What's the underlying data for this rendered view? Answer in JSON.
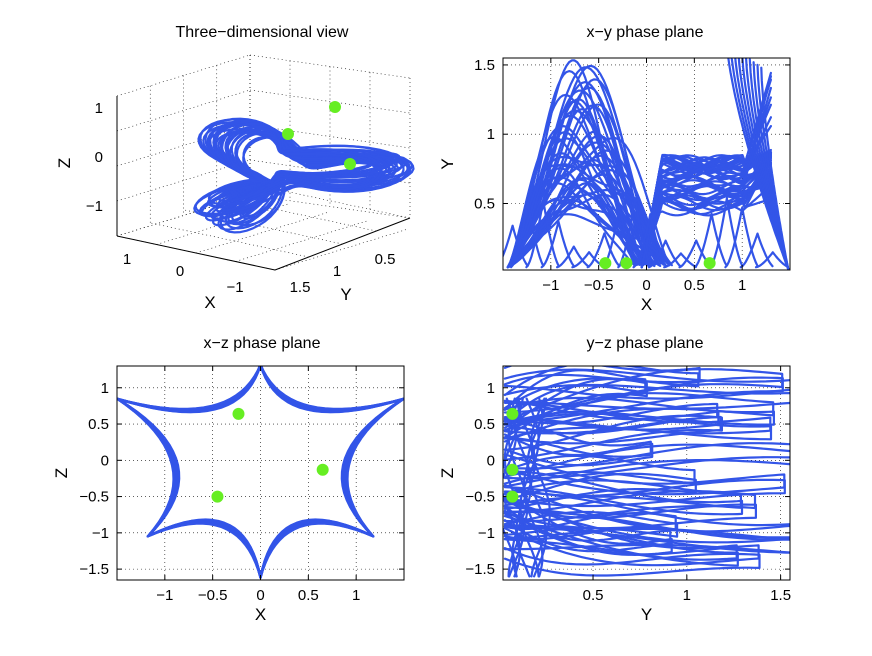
{
  "colors": {
    "curve": "#3355e8",
    "point": "#66ee22",
    "grid": "#000000"
  },
  "chart_data": [
    {
      "type": "line3d",
      "title": "Three−dimensional view",
      "xlabel": "X",
      "ylabel": "Y",
      "zlabel": "Z",
      "xticks": [
        "1",
        "0",
        "−1"
      ],
      "yticks": [
        "1.5",
        "1",
        "0.5"
      ],
      "zticks": [
        "1",
        "0",
        "−1"
      ],
      "grid": true,
      "points": [
        {
          "x": -0.4,
          "y": 0.07,
          "z": -0.5
        },
        {
          "x": -0.2,
          "y": 0.07,
          "z": 0.65
        },
        {
          "x": 0.65,
          "y": 0.07,
          "z": -0.13
        }
      ]
    },
    {
      "type": "line",
      "title": "x−y phase plane",
      "xlabel": "X",
      "ylabel": "Y",
      "xlim": [
        -1.5,
        1.5
      ],
      "ylim": [
        0.02,
        1.55
      ],
      "xticks": [
        -1,
        -0.5,
        0,
        0.5,
        1
      ],
      "xticklabels": [
        "−1",
        "−0.5",
        "0",
        "0.5",
        "1"
      ],
      "yticks": [
        0.5,
        1,
        1.5
      ],
      "yticklabels": [
        "0.5",
        "1",
        "1.5"
      ],
      "grid": true,
      "points": [
        {
          "x": -0.43,
          "y": 0.07
        },
        {
          "x": -0.21,
          "y": 0.07
        },
        {
          "x": 0.66,
          "y": 0.07
        }
      ]
    },
    {
      "type": "line",
      "title": "x−z phase plane",
      "xlabel": "X",
      "ylabel": "Z",
      "xlim": [
        -1.5,
        1.5
      ],
      "ylim": [
        -1.65,
        1.3
      ],
      "xticks": [
        -1,
        -0.5,
        0,
        0.5,
        1
      ],
      "xticklabels": [
        "−1",
        "−0.5",
        "0",
        "0.5",
        "1"
      ],
      "yticks": [
        -1.5,
        -1,
        -0.5,
        0,
        0.5,
        1
      ],
      "yticklabels": [
        "−1.5",
        "−1",
        "−0.5",
        "0",
        "0.5",
        "1"
      ],
      "grid": true,
      "points": [
        {
          "x": -0.23,
          "y": 0.64
        },
        {
          "x": 0.65,
          "y": -0.13
        },
        {
          "x": -0.45,
          "y": -0.5
        }
      ]
    },
    {
      "type": "line",
      "title": "y−z phase plane",
      "xlabel": "Y",
      "ylabel": "Z",
      "xlim": [
        0.02,
        1.55
      ],
      "ylim": [
        -1.65,
        1.3
      ],
      "xticks": [
        0.5,
        1,
        1.5
      ],
      "xticklabels": [
        "0.5",
        "1",
        "1.5"
      ],
      "yticks": [
        -1.5,
        -1,
        -0.5,
        0,
        0.5,
        1
      ],
      "yticklabels": [
        "−1.5",
        "−1",
        "−0.5",
        "0",
        "0.5",
        "1"
      ],
      "grid": true,
      "points": [
        {
          "x": 0.07,
          "y": 0.64
        },
        {
          "x": 0.07,
          "y": -0.13
        },
        {
          "x": 0.07,
          "y": -0.5
        }
      ]
    }
  ]
}
